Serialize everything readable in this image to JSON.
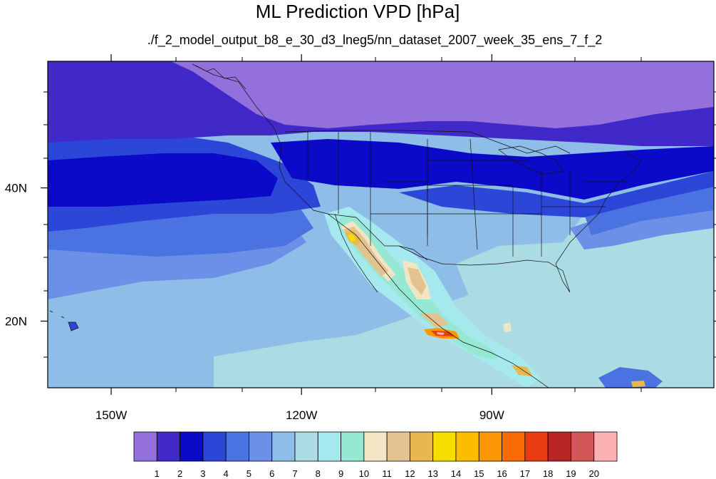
{
  "chart_data": {
    "type": "heatmap",
    "title": "ML Prediction VPD [hPa]",
    "subtitle": "./f_2_model_output_b8_e_30_d3_lneg5/nn_dataset_2007_week_35_ens_7_f_2",
    "map_extent": {
      "lon": [
        -160,
        -55
      ],
      "lat": [
        10,
        59
      ]
    },
    "x_ticks": [
      {
        "value": -150,
        "label": "150W"
      },
      {
        "value": -120,
        "label": "120W"
      },
      {
        "value": -90,
        "label": "90W"
      }
    ],
    "y_ticks": [
      {
        "value": 20,
        "label": "20N"
      },
      {
        "value": 40,
        "label": "40N"
      }
    ],
    "colorbar": {
      "colors": [
        "#9370db",
        "#4129c9",
        "#0a0ac8",
        "#2c46d8",
        "#4b72e1",
        "#6c8fe8",
        "#8ebde8",
        "#abdbe3",
        "#a5e9ef",
        "#96e8d3",
        "#f2e5c4",
        "#e2c28f",
        "#e8b84f",
        "#f8de00",
        "#fcbc00",
        "#fb9606",
        "#fc6a08",
        "#e73b12",
        "#b82624",
        "#d25756",
        "#fdb2b2"
      ],
      "labels": [
        "1",
        "2",
        "3",
        "4",
        "5",
        "6",
        "7",
        "8",
        "9",
        "10",
        "11",
        "12",
        "13",
        "14",
        "15",
        "16",
        "17",
        "18",
        "19",
        "20"
      ]
    }
  }
}
